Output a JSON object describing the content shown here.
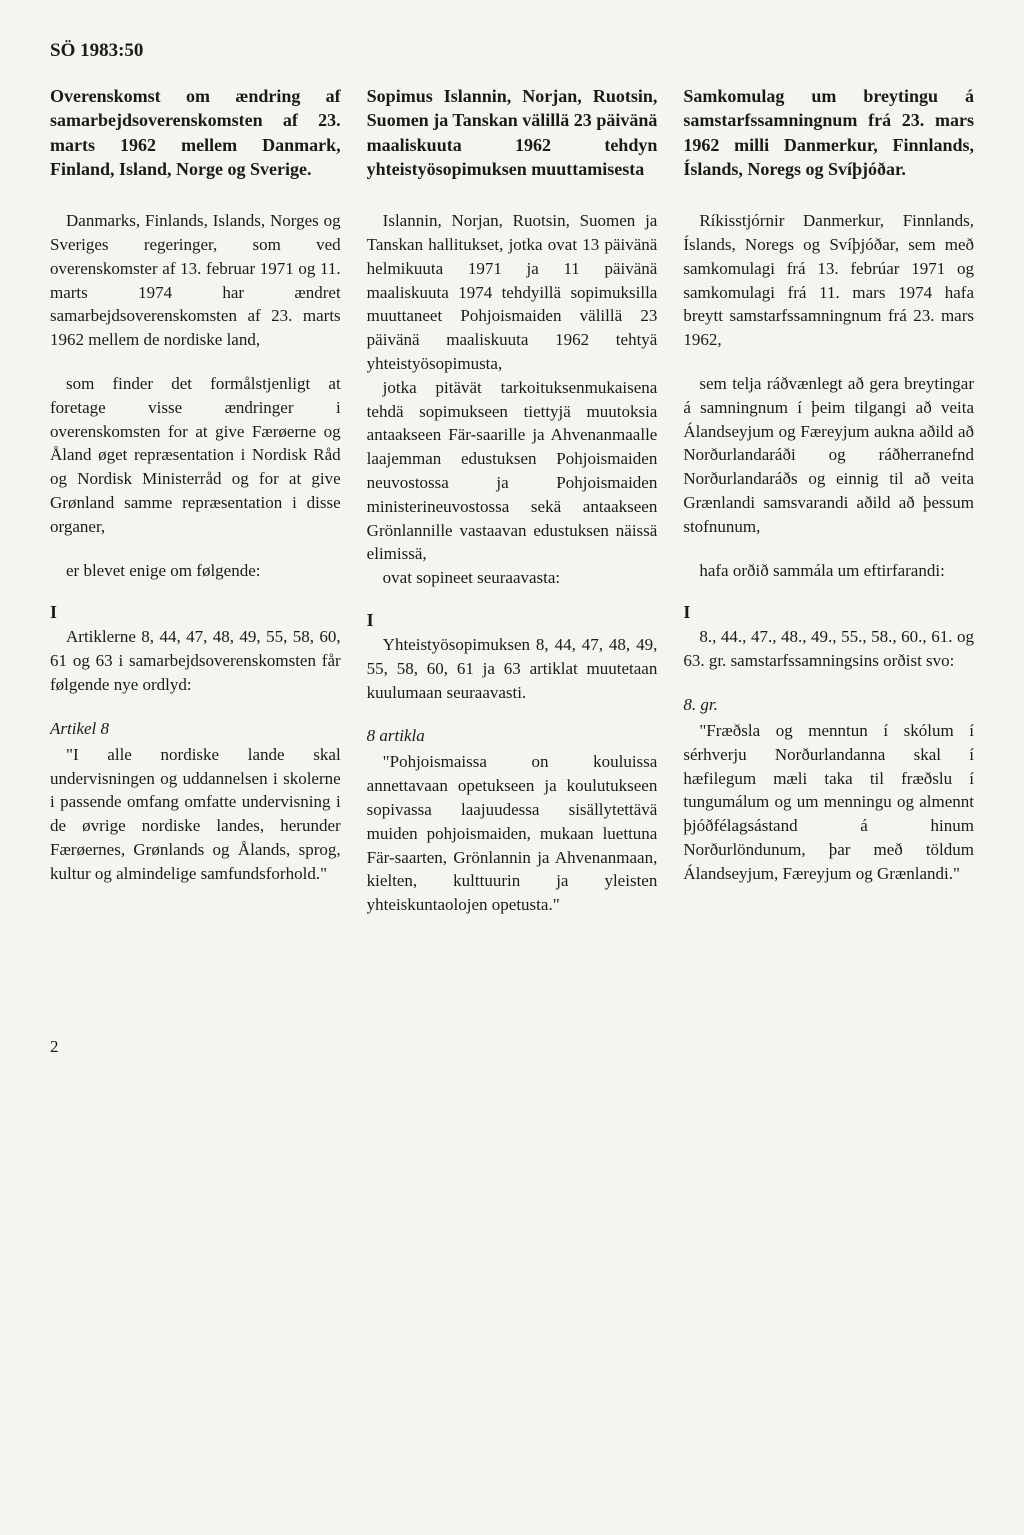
{
  "header": "SÖ 1983:50",
  "col1": {
    "title": "Overenskomst om ændring af samarbejdsoverenskomsten af 23. marts 1962 mellem Danmark, Finland, Island, Norge og Sverige.",
    "p1": "Danmarks, Finlands, Islands, Norges og Sveriges regeringer, som ved overenskomster af 13. februar 1971 og 11. marts 1974 har ændret samarbejdsoverenskomsten af 23. marts 1962 mellem de nordiske land,",
    "p2": "som finder det formålstjenligt at foretage visse ændringer i overenskomsten for at give Færøerne og Åland øget repræsentation i Nordisk Råd og Nordisk Ministerråd og for at give Grønland samme repræsentation i disse organer,",
    "p3": "er blevet enige om følgende:",
    "sect": "I",
    "p4": "Artiklerne 8, 44, 47, 48, 49, 55, 58, 60, 61 og 63 i samarbejdsoverenskomsten får følgende nye ordlyd:",
    "art": "Artikel 8",
    "p5": "\"I alle nordiske lande skal undervisningen og uddannelsen i skolerne i passende omfang omfatte undervisning i de øvrige nordiske landes, herunder Færøernes, Grønlands og Ålands, sprog, kultur og almindelige samfundsforhold.\""
  },
  "col2": {
    "title": "Sopimus Islannin, Norjan, Ruotsin, Suomen ja Tanskan välillä 23 päivänä maaliskuuta 1962 tehdyn yhteistyösopimuksen muuttamisesta",
    "p1": "Islannin, Norjan, Ruotsin, Suomen ja Tanskan hallitukset, jotka ovat 13 päivänä helmikuuta 1971 ja 11 päivänä maaliskuuta 1974 tehdyillä sopimuksilla muuttaneet Pohjoismaiden välillä 23 päivänä maaliskuuta 1962 tehtyä yhteistyösopimusta,",
    "p2": "jotka pitävät tarkoituksenmukaisena tehdä sopimukseen tiettyjä muutoksia antaakseen Fär-saarille ja Ahvenanmaalle laajemman edustuksen Pohjoismaiden neuvostossa ja Pohjoismaiden ministerineuvostossa sekä antaakseen Grönlannille vastaavan edustuksen näissä elimissä,",
    "p3": "ovat sopineet seuraavasta:",
    "sect": "I",
    "p4": "Yhteistyösopimuksen 8, 44, 47, 48, 49, 55, 58, 60, 61 ja 63 artiklat muutetaan kuulumaan seuraavasti.",
    "art": "8 artikla",
    "p5": "\"Pohjoismaissa on kouluissa annettavaan opetukseen ja koulutukseen sopivassa laajuudessa sisällytettävä muiden pohjoismaiden, mukaan luettuna Fär-saarten, Grönlannin ja Ahvenanmaan, kielten, kulttuurin ja yleisten yhteiskuntaolojen opetusta.\""
  },
  "col3": {
    "title": "Samkomulag um breytingu á samstarfssamningnum frá 23. mars 1962 milli Danmerkur, Finnlands, Íslands, Noregs og Svíþjóðar.",
    "p1": "Ríkisstjórnir Danmerkur, Finnlands, Íslands, Noregs og Svíþjóðar, sem með samkomulagi frá 13. febrúar 1971 og samkomulagi frá 11. mars 1974 hafa breytt samstarfssamningnum frá 23. mars 1962,",
    "p2": "sem telja ráðvænlegt að gera breytingar á samningnum í þeim tilgangi að veita Álandseyjum og Færeyjum aukna aðild að Norðurlandaráði og ráðherranefnd Norðurlandaráðs og einnig til að veita Grænlandi samsvarandi aðild að þessum stofnunum,",
    "p3": "hafa orðið sammála um eftirfarandi:",
    "sect": "I",
    "p4": "8., 44., 47., 48., 49., 55., 58., 60., 61. og 63. gr. samstarfssamningsins orðist svo:",
    "art": "8. gr.",
    "p5": "\"Fræðsla og menntun í skólum í sérhverju Norðurlandanna skal í hæfilegum mæli taka til fræðslu í tungumálum og um menningu og almennt þjóðfélagsástand á hinum Norðurlöndunum, þar með töldum Álandseyjum, Færeyjum og Grænlandi.\""
  },
  "pageNum": "2"
}
